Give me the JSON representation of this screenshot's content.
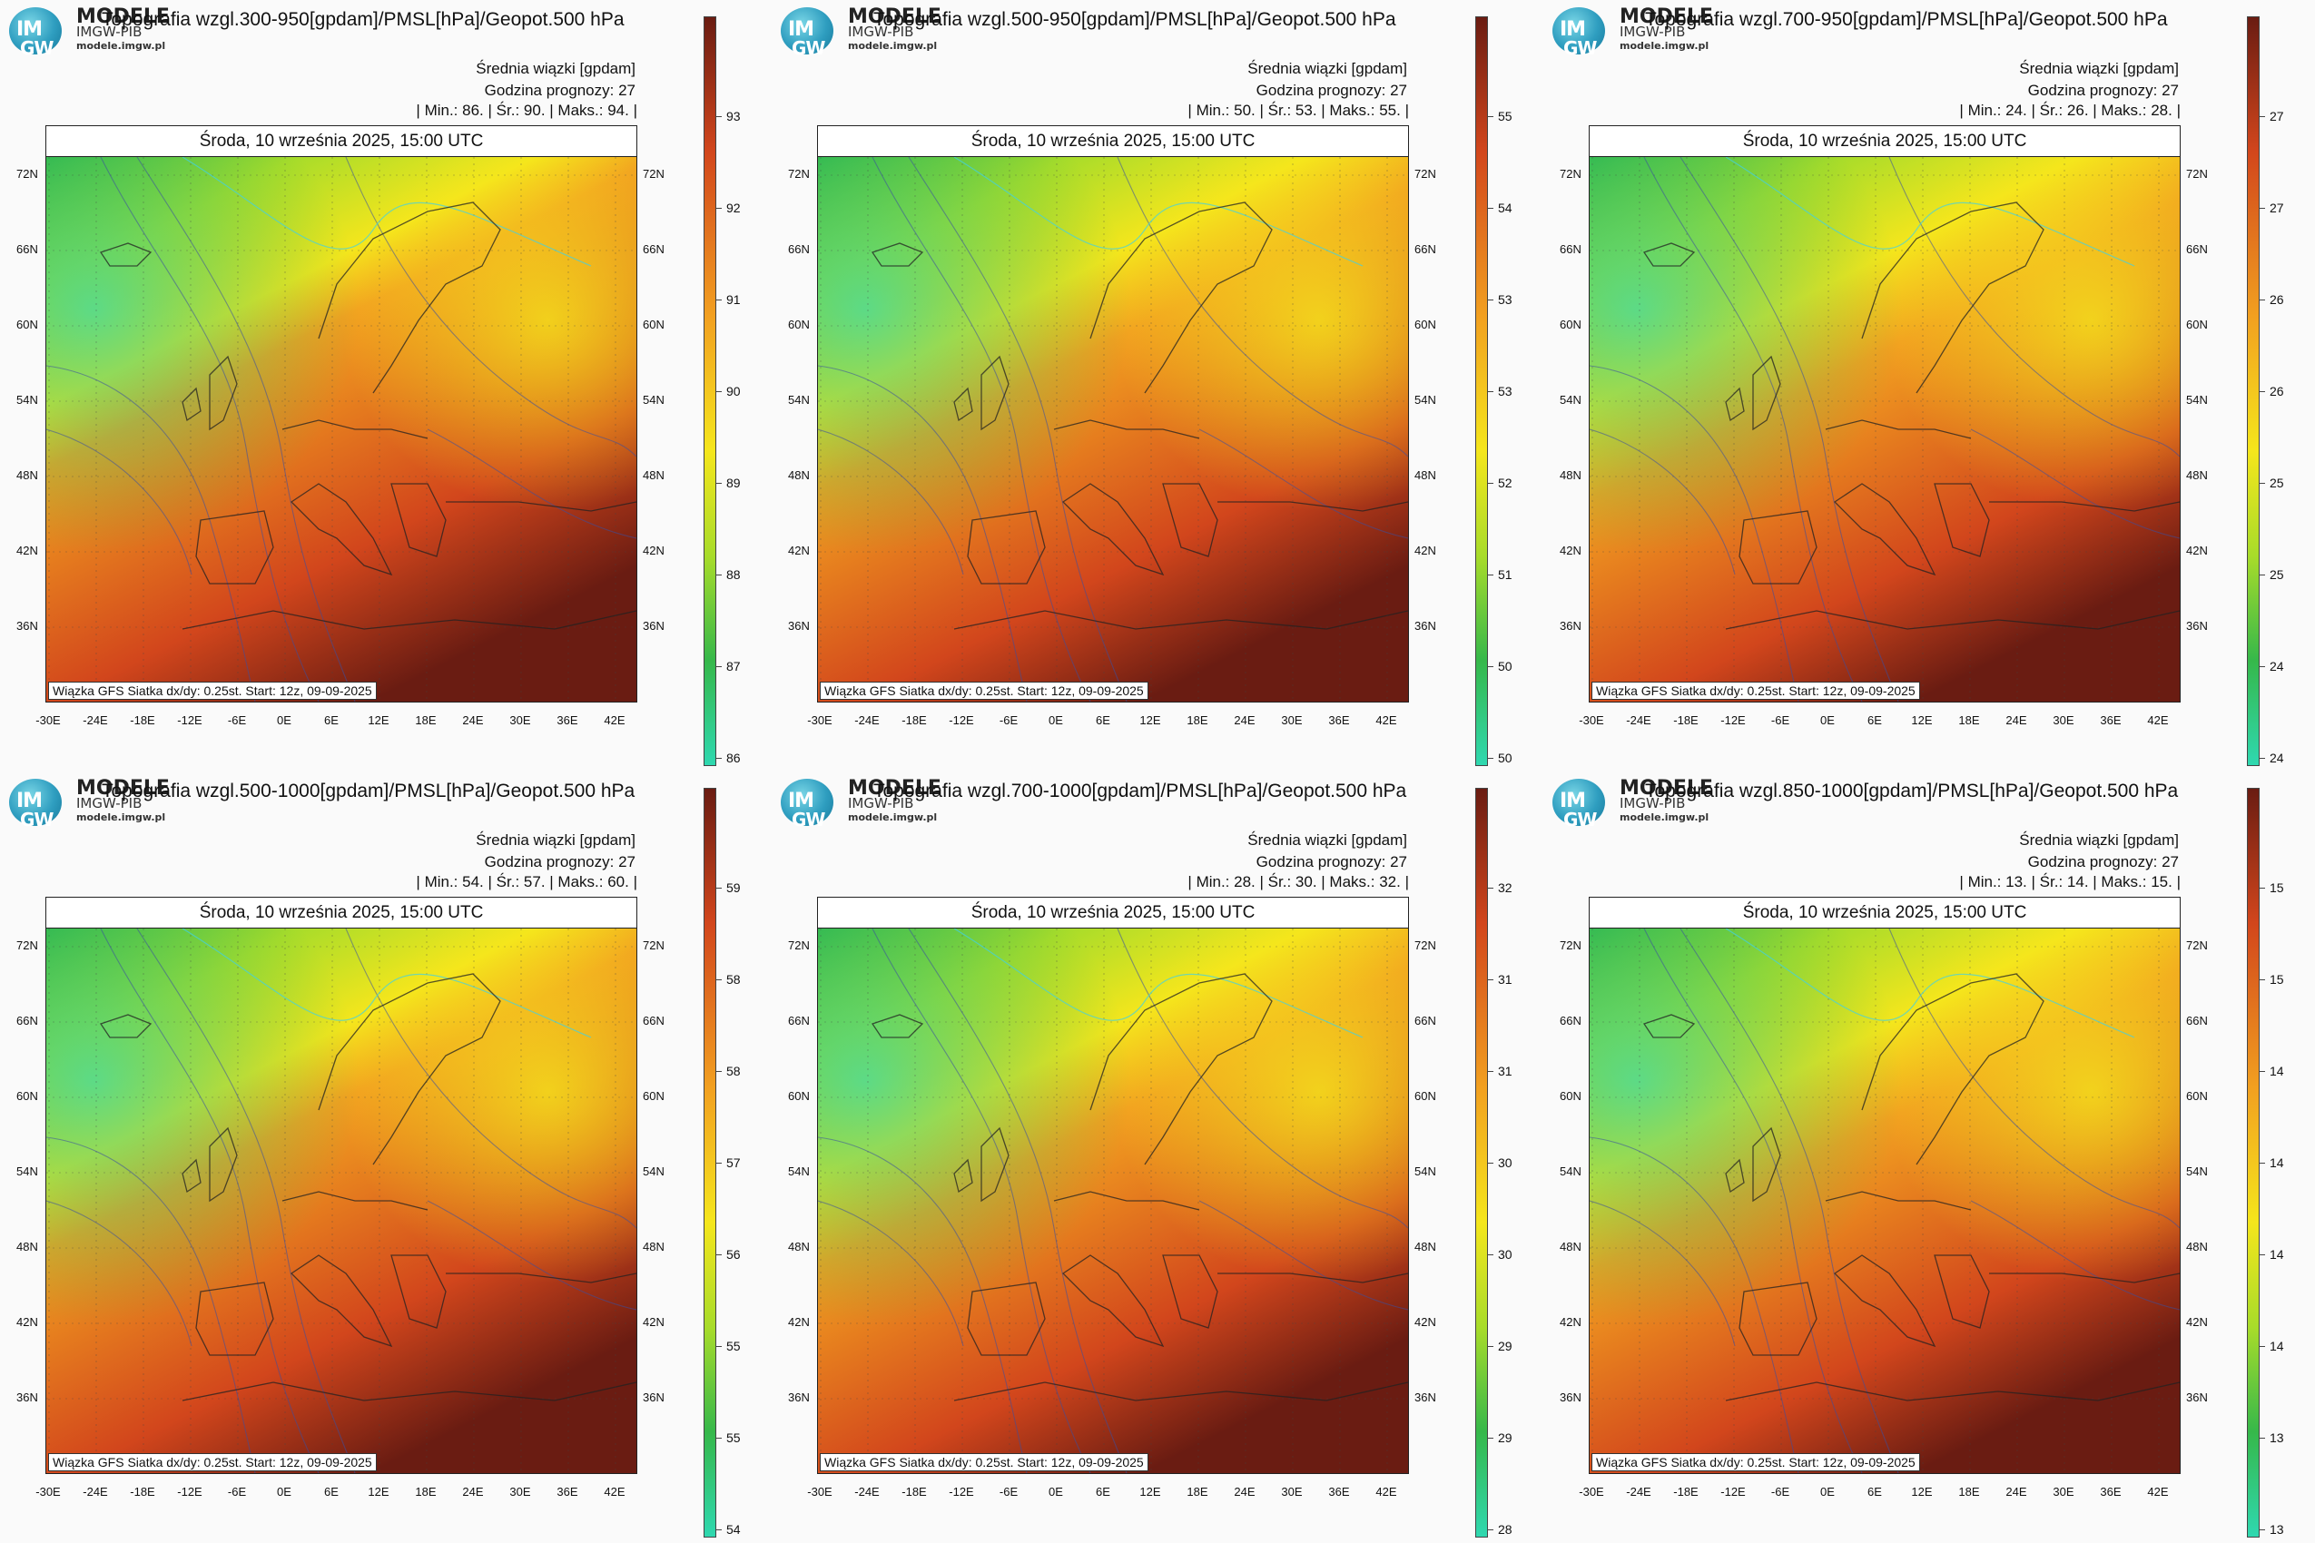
{
  "brand": {
    "name": "MODELE",
    "sub": "IMGW-PIB",
    "url": "modele.imgw.pl",
    "logo_top": "IM",
    "logo_bottom": "GW"
  },
  "common": {
    "title_suffix": "/PMSL[hPa]/Geopot.500 hPa",
    "info_line1": "Średnia wiązki [gpdam]",
    "info_line2": "Godzina prognozy: 27",
    "map_header": "Środa, 10 września 2025, 15:00 UTC",
    "footer": "Wiązka GFS Siatka dx/dy: 0.25st. Start: 12z, 09-09-2025",
    "lat_labels": [
      "72N",
      "66N",
      "60N",
      "54N",
      "48N",
      "42N",
      "36N"
    ],
    "lon_labels": [
      "-30E",
      "-24E",
      "-18E",
      "-12E",
      "-6E",
      "0E",
      "6E",
      "12E",
      "18E",
      "24E",
      "30E",
      "36E",
      "42E"
    ]
  },
  "colors": {
    "cold": "#2fd8b0",
    "green": "#36b84a",
    "lime": "#a8dc2a",
    "yellow": "#f5e61c",
    "orange": "#f2a020",
    "red": "#d2461c",
    "dark": "#6a1c12"
  },
  "panels": [
    {
      "title": "Topografia wzgl.300-950[gpdam]",
      "min": "86.",
      "avg": "90.",
      "max": "94.",
      "cbar_labels": [
        "93",
        "92",
        "91",
        "90",
        "89",
        "88",
        "87",
        "86"
      ],
      "warm": 0.75
    },
    {
      "title": "Topografia wzgl.500-950[gpdam]",
      "min": "50.",
      "avg": "53.",
      "max": "55.",
      "cbar_labels": [
        "55",
        "54",
        "53",
        "53",
        "52",
        "51",
        "50",
        "50"
      ],
      "warm": 0.55
    },
    {
      "title": "Topografia wzgl.700-950[gpdam]",
      "min": "24.",
      "avg": "26.",
      "max": "28.",
      "cbar_labels": [
        "27",
        "27",
        "26",
        "26",
        "25",
        "25",
        "24",
        "24"
      ],
      "warm": 0.45
    },
    {
      "title": "Topografia wzgl.500-1000[gpdam]",
      "min": "54.",
      "avg": "57.",
      "max": "60.",
      "cbar_labels": [
        "59",
        "58",
        "58",
        "57",
        "56",
        "55",
        "55",
        "54"
      ],
      "warm": 0.65
    },
    {
      "title": "Topografia wzgl.700-1000[gpdam]",
      "min": "28.",
      "avg": "30.",
      "max": "32.",
      "cbar_labels": [
        "32",
        "31",
        "31",
        "30",
        "30",
        "29",
        "29",
        "28"
      ],
      "warm": 0.5
    },
    {
      "title": "Topografia wzgl.850-1000[gpdam]",
      "min": "13.",
      "avg": "14.",
      "max": "15.",
      "cbar_labels": [
        "15",
        "15",
        "14",
        "14",
        "14",
        "14",
        "13",
        "13"
      ],
      "warm": 0.45
    }
  ],
  "stats_labels": {
    "min": "Min.:",
    "avg": "Śr.:",
    "max": "Maks.:"
  }
}
